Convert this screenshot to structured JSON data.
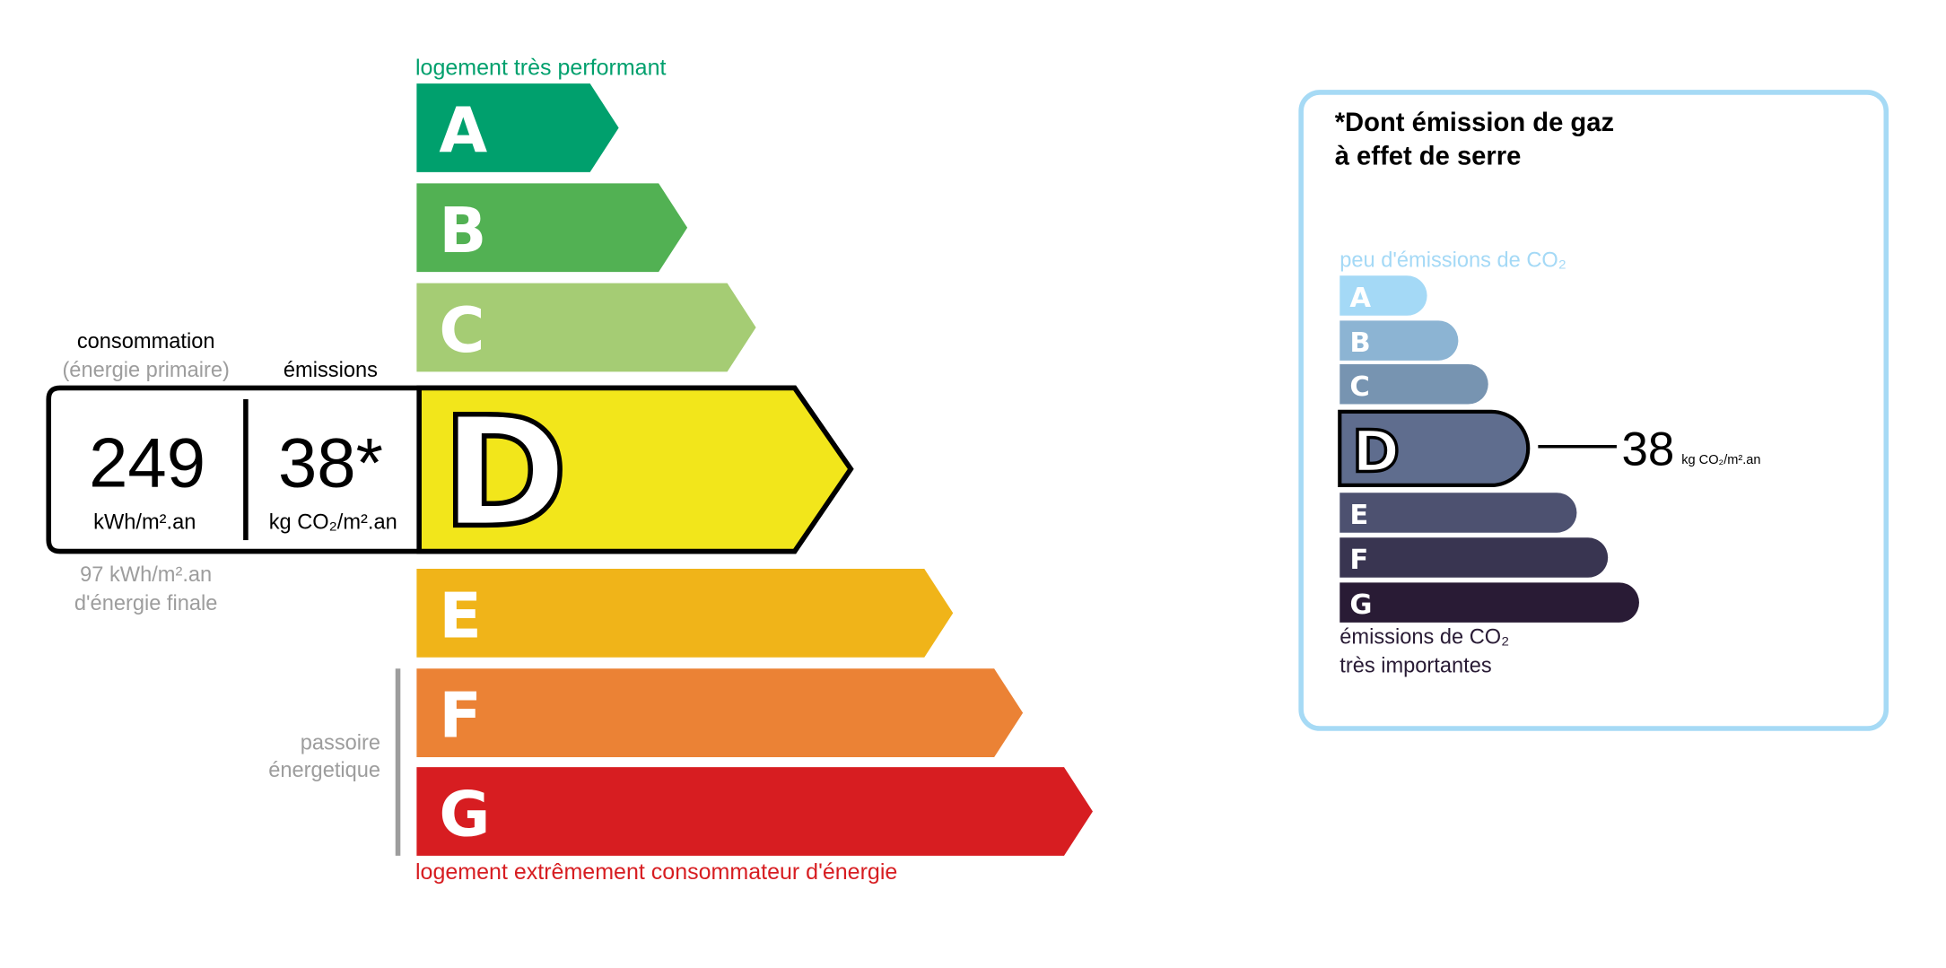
{
  "energy": {
    "top_label": "logement très performant",
    "bottom_label": "logement extrêmement consommateur d'énergie",
    "passoire_label": [
      "passoire",
      "énergetique"
    ],
    "classes": [
      {
        "letter": "A",
        "color": "#00a06d"
      },
      {
        "letter": "B",
        "color": "#52b153"
      },
      {
        "letter": "C",
        "color": "#a5cc74"
      },
      {
        "letter": "D",
        "color": "#f2e61b"
      },
      {
        "letter": "E",
        "color": "#f0b419"
      },
      {
        "letter": "F",
        "color": "#eb8235"
      },
      {
        "letter": "G",
        "color": "#d71d21"
      }
    ],
    "current_class": "D",
    "consumption": {
      "header": "consommation",
      "subheader": "(énergie primaire)",
      "value": "249",
      "unit": "kWh/m².an",
      "final_value": "97 kWh/m².an",
      "final_label": "d'énergie finale"
    },
    "emissions": {
      "header": "émissions",
      "value": "38*",
      "unit": "kg CO₂/m².an"
    },
    "top_color": "#00a06d",
    "bottom_color": "#d71d21"
  },
  "ges": {
    "title": [
      "*Dont émission de gaz",
      "à effet de serre"
    ],
    "top_label": "peu d'émissions de CO₂",
    "bottom_label": [
      "émissions de CO₂",
      "très importantes"
    ],
    "classes": [
      {
        "letter": "A",
        "color": "#a4d9f6"
      },
      {
        "letter": "B",
        "color": "#8cb4d3"
      },
      {
        "letter": "C",
        "color": "#7794b1"
      },
      {
        "letter": "D",
        "color": "#5f6d8e"
      },
      {
        "letter": "E",
        "color": "#4d5170"
      },
      {
        "letter": "F",
        "color": "#393551"
      },
      {
        "letter": "G",
        "color": "#291b35"
      }
    ],
    "current_class": "D",
    "value": "38",
    "unit": "kg CO₂/m².an",
    "border_color": "#a6daf5"
  }
}
